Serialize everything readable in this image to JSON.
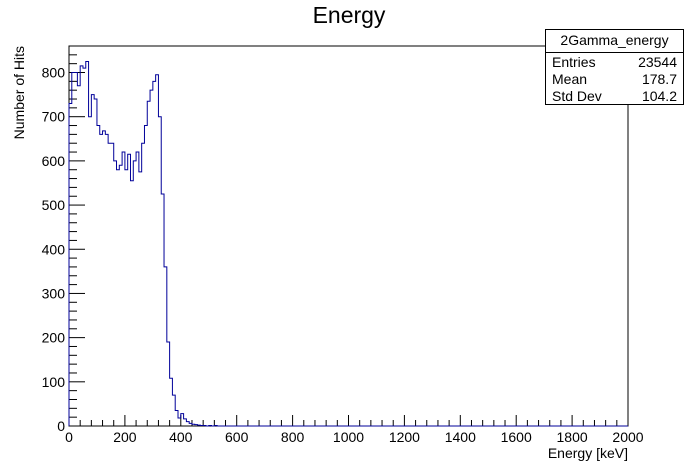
{
  "chart_data": {
    "type": "bar",
    "title": "Energy",
    "xlabel": "Energy [keV]",
    "ylabel": "Number of Hits",
    "xlim": [
      0,
      2000
    ],
    "ylim": [
      0,
      860
    ],
    "x_ticks": [
      0,
      200,
      400,
      600,
      800,
      1000,
      1200,
      1400,
      1600,
      1800,
      2000
    ],
    "y_ticks": [
      0,
      100,
      200,
      300,
      400,
      500,
      600,
      700,
      800
    ],
    "bin_width": 10,
    "values": [
      730,
      800,
      800,
      770,
      815,
      810,
      825,
      700,
      750,
      740,
      680,
      660,
      668,
      660,
      640,
      640,
      600,
      580,
      590,
      620,
      580,
      615,
      555,
      600,
      620,
      575,
      640,
      680,
      735,
      760,
      780,
      795,
      700,
      525,
      360,
      190,
      108,
      70,
      35,
      18,
      28,
      16,
      10,
      6,
      4,
      3,
      2,
      1,
      1,
      0,
      1,
      0,
      1
    ],
    "line_color": "#000099",
    "grid": false
  },
  "stats_box": {
    "name": "2Gamma_energy",
    "rows": [
      {
        "label": "Entries",
        "value": "23544"
      },
      {
        "label": "Mean",
        "value": "178.7"
      },
      {
        "label": "Std Dev",
        "value": "104.2"
      }
    ]
  }
}
